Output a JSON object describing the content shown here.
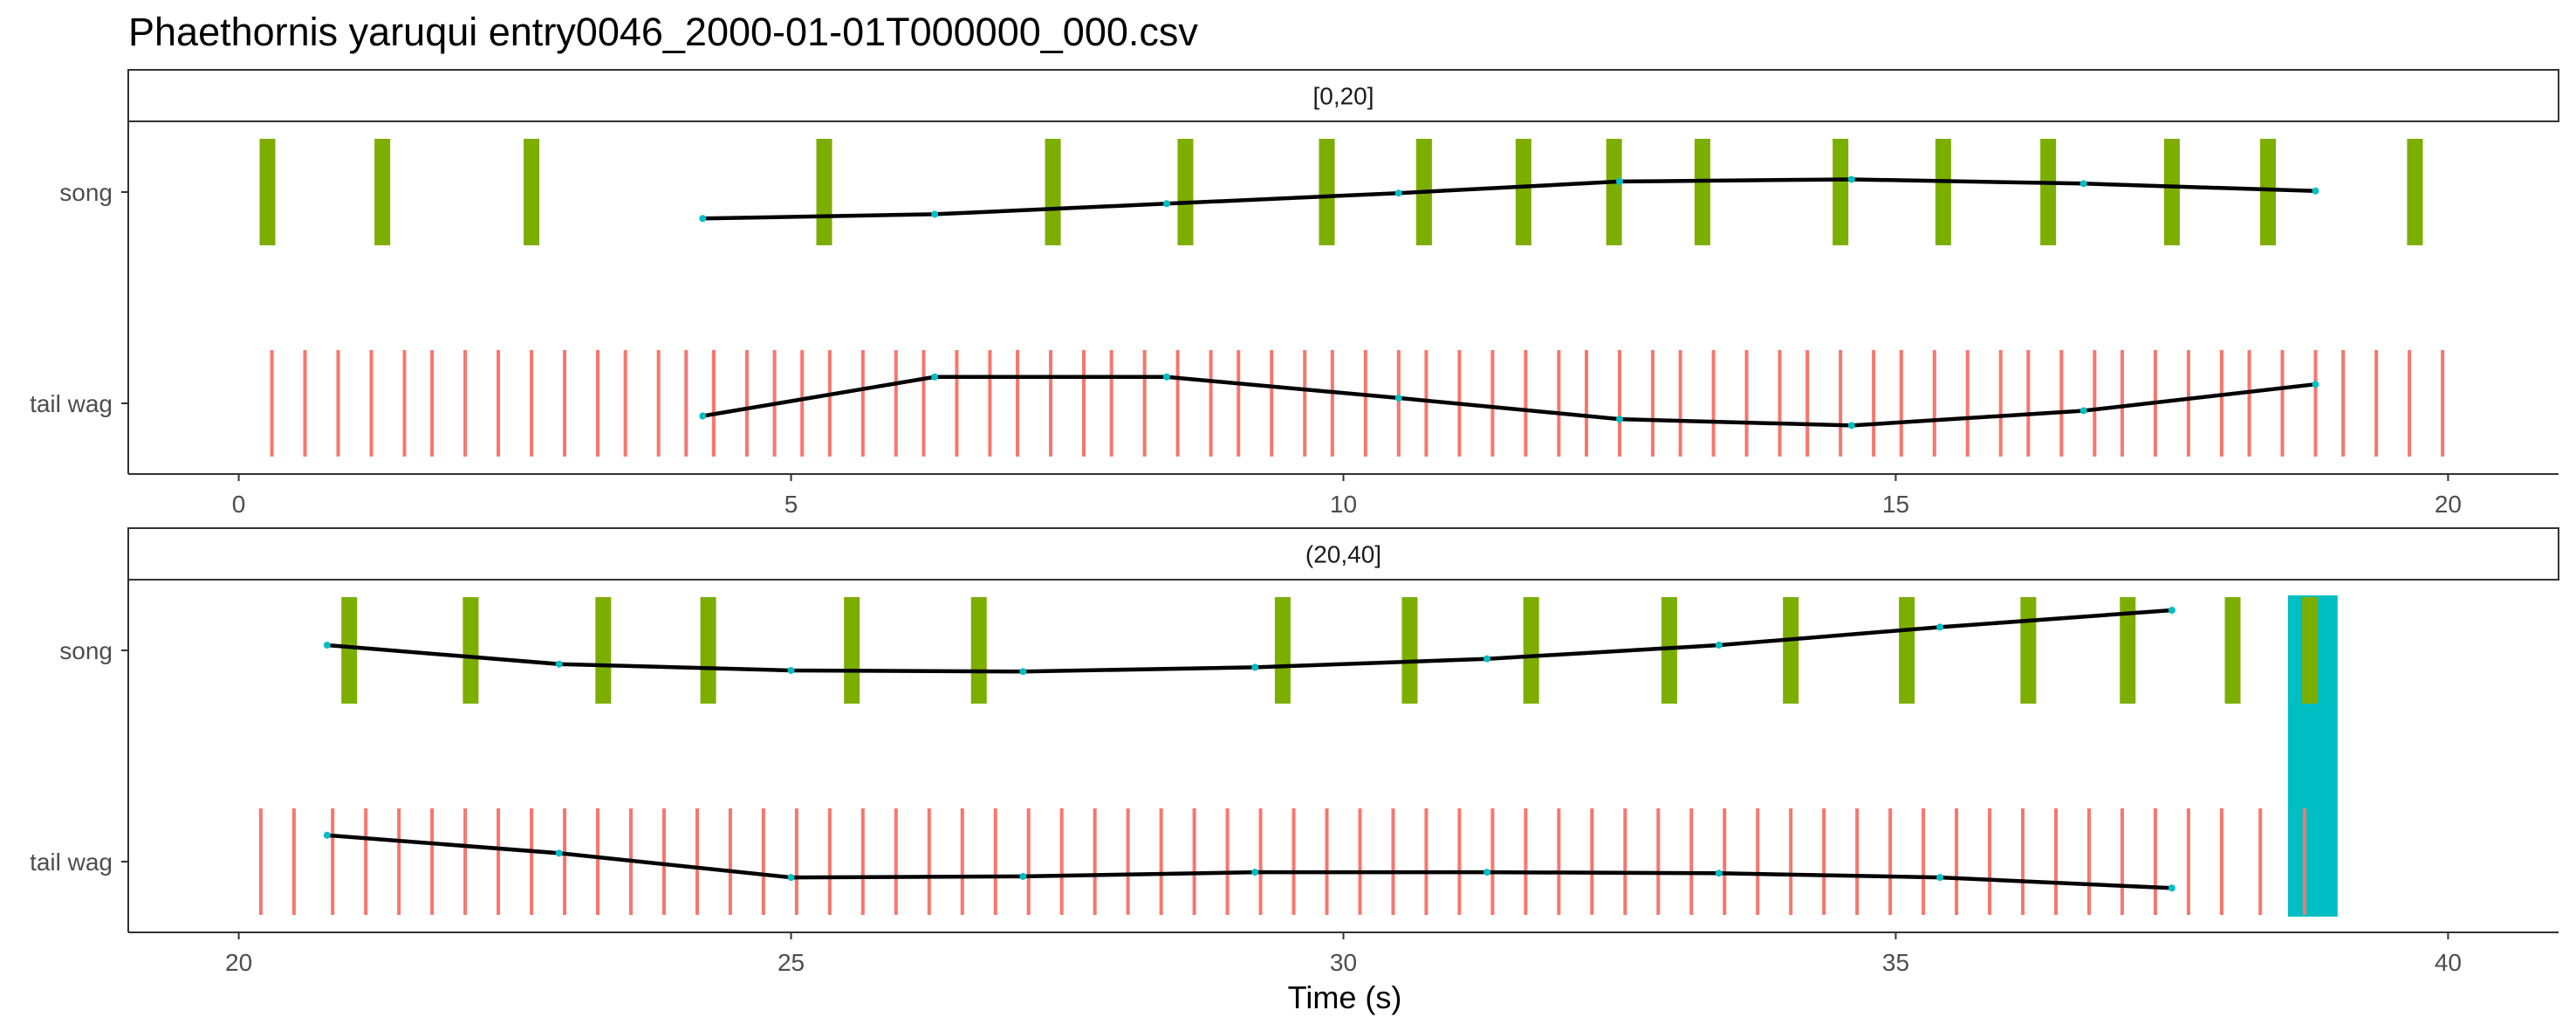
{
  "title": "Phaethornis yaruqui   entry0046_2000-01-01T000000_000.csv",
  "x_axis_title": "Time (s)",
  "colors": {
    "song": "#7cae00",
    "tail_wag": "#f8766d",
    "highlight": "#00bfc4",
    "line": "#000000",
    "line_point": "#00bfc4"
  },
  "chart_data": {
    "type": "event-raster",
    "categories": [
      "song",
      "tail wag"
    ],
    "xlabel": "Time (s)",
    "grid": false,
    "panels": [
      {
        "strip_label": "[0,20]",
        "xlim": [
          -1,
          21
        ],
        "x_ticks": [
          0,
          5,
          10,
          15,
          20
        ],
        "x_tick_labels": [
          "0",
          "5",
          "10",
          "15",
          "20"
        ],
        "song_events": [
          0.26,
          1.3,
          2.65,
          5.3,
          7.37,
          8.57,
          9.85,
          10.73,
          11.63,
          12.45,
          13.25,
          14.5,
          15.43,
          16.38,
          17.5,
          18.37,
          19.7
        ],
        "song_line": [
          [
            4.2,
            0.25
          ],
          [
            6.3,
            0.21
          ],
          [
            8.4,
            0.11
          ],
          [
            10.5,
            0.01
          ],
          [
            12.5,
            -0.1
          ],
          [
            14.6,
            -0.12
          ],
          [
            16.7,
            -0.08
          ],
          [
            18.8,
            -0.01
          ]
        ],
        "tail_wag_events": [
          0.3,
          0.6,
          0.9,
          1.2,
          1.5,
          1.75,
          2.05,
          2.35,
          2.65,
          2.95,
          3.25,
          3.5,
          3.8,
          4.05,
          4.3,
          4.6,
          4.85,
          5.1,
          5.35,
          5.65,
          5.95,
          6.2,
          6.5,
          6.8,
          7.05,
          7.35,
          7.65,
          7.9,
          8.2,
          8.5,
          8.8,
          9.05,
          9.35,
          9.65,
          9.9,
          10.2,
          10.5,
          10.75,
          11.05,
          11.35,
          11.65,
          11.95,
          12.2,
          12.5,
          12.8,
          13.05,
          13.35,
          13.65,
          13.95,
          14.2,
          14.5,
          14.8,
          15.05,
          15.35,
          15.65,
          15.95,
          16.2,
          16.5,
          16.8,
          17.05,
          17.35,
          17.65,
          17.95,
          18.2,
          18.5,
          18.8,
          19.05,
          19.35,
          19.65,
          19.95
        ],
        "tail_wag_line": [
          [
            4.2,
            0.12
          ],
          [
            6.3,
            -0.25
          ],
          [
            8.4,
            -0.25
          ],
          [
            10.5,
            -0.05
          ],
          [
            12.5,
            0.15
          ],
          [
            14.6,
            0.21
          ],
          [
            16.7,
            0.07
          ],
          [
            18.8,
            -0.18
          ]
        ],
        "highlights": []
      },
      {
        "strip_label": "(20,40]",
        "xlim": [
          19.0,
          41.0
        ],
        "x_ticks": [
          20,
          25,
          30,
          35,
          40
        ],
        "x_tick_labels": [
          "20",
          "25",
          "30",
          "35",
          "40"
        ],
        "song_events": [
          21.0,
          22.1,
          23.3,
          24.25,
          25.55,
          26.7,
          29.45,
          30.6,
          31.7,
          32.95,
          34.05,
          35.1,
          36.2,
          37.1,
          38.05,
          38.75
        ],
        "song_line": [
          [
            20.8,
            -0.05
          ],
          [
            22.9,
            0.13
          ],
          [
            25.0,
            0.19
          ],
          [
            27.1,
            0.2
          ],
          [
            29.2,
            0.16
          ],
          [
            31.3,
            0.08
          ],
          [
            33.4,
            -0.05
          ],
          [
            35.4,
            -0.22
          ],
          [
            37.5,
            -0.38
          ]
        ],
        "tail_wag_events": [
          20.2,
          20.5,
          20.85,
          21.15,
          21.45,
          21.75,
          22.05,
          22.35,
          22.65,
          22.95,
          23.25,
          23.55,
          23.85,
          24.15,
          24.45,
          24.75,
          25.05,
          25.35,
          25.65,
          25.95,
          26.25,
          26.55,
          26.85,
          27.15,
          27.45,
          27.75,
          28.05,
          28.35,
          28.65,
          28.95,
          29.25,
          29.55,
          29.85,
          30.15,
          30.45,
          30.75,
          31.05,
          31.35,
          31.65,
          31.95,
          32.25,
          32.55,
          32.85,
          33.15,
          33.45,
          33.75,
          34.05,
          34.35,
          34.65,
          34.95,
          35.25,
          35.55,
          35.85,
          36.15,
          36.45,
          36.75,
          37.05,
          37.35,
          37.65,
          37.95,
          38.3,
          38.7
        ],
        "tail_wag_line": [
          [
            20.8,
            -0.25
          ],
          [
            22.9,
            -0.08
          ],
          [
            25.0,
            0.15
          ],
          [
            27.1,
            0.14
          ],
          [
            29.2,
            0.1
          ],
          [
            31.3,
            0.1
          ],
          [
            33.4,
            0.11
          ],
          [
            35.4,
            0.15
          ],
          [
            37.5,
            0.25
          ]
        ],
        "highlights": [
          [
            38.55,
            39.0
          ]
        ]
      }
    ]
  }
}
